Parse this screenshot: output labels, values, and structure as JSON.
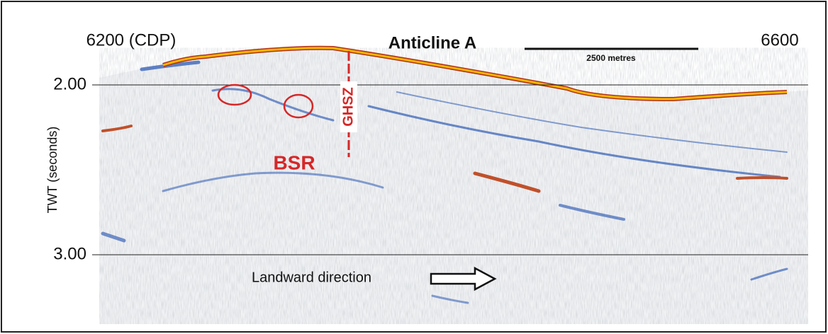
{
  "figure": {
    "left_label": "6200 (CDP)",
    "right_label": "6600",
    "title": "Anticline A",
    "scale_bar": "2500 metres",
    "y_labels": [
      "2.00",
      "3.00"
    ],
    "y_axis_title": "TWT (seconds)",
    "ghsz": "GHSZ",
    "bsr": "BSR",
    "direction": "Landward direction"
  }
}
